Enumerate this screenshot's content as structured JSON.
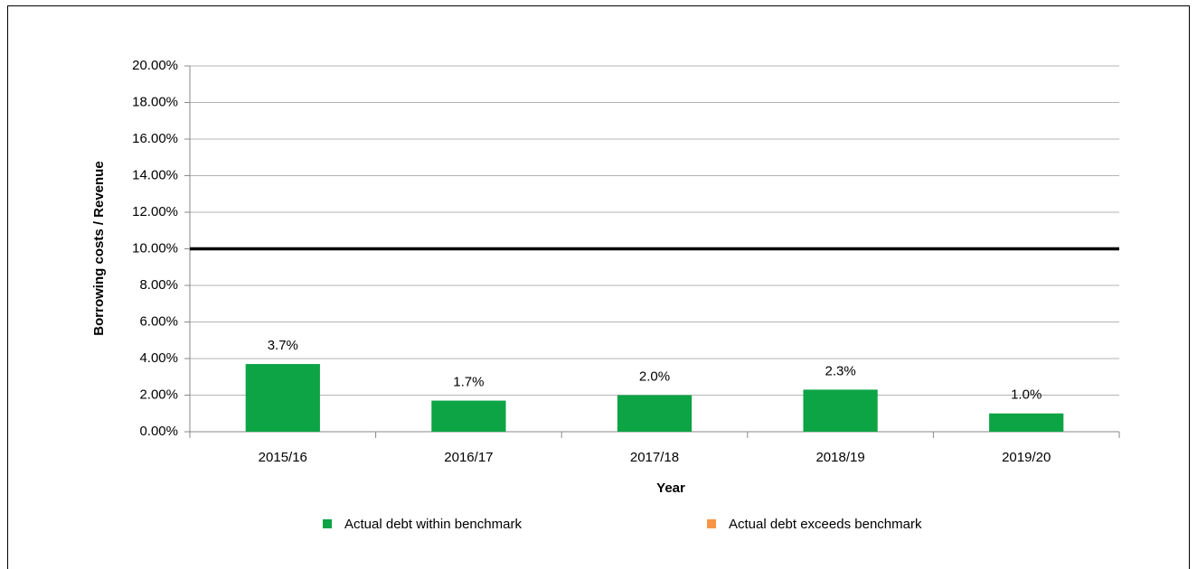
{
  "chart_data": {
    "type": "bar",
    "x_label": "Year",
    "y_label": "Borrowing costs / Revenue",
    "categories": [
      "2015/16",
      "2016/17",
      "2017/18",
      "2018/19",
      "2019/20"
    ],
    "series": [
      {
        "name": "Actual debt within benchmark",
        "color": "#0ca444",
        "values": [
          3.7,
          1.7,
          2.0,
          2.3,
          1.0
        ],
        "value_labels": [
          "3.7%",
          "1.7%",
          "2.0%",
          "2.3%",
          "1.0%"
        ]
      },
      {
        "name": "Actual debt exceeds benchmark",
        "color": "#f79646",
        "values": [
          null,
          null,
          null,
          null,
          null
        ]
      }
    ],
    "benchmark": 10,
    "ylim": [
      0,
      20
    ],
    "yticks": [
      {
        "value": 0,
        "label": "0.00%"
      },
      {
        "value": 2,
        "label": "2.00%"
      },
      {
        "value": 4,
        "label": "4.00%"
      },
      {
        "value": 6,
        "label": "6.00%"
      },
      {
        "value": 8,
        "label": "8.00%"
      },
      {
        "value": 10,
        "label": "10.00%"
      },
      {
        "value": 12,
        "label": "12.00%"
      },
      {
        "value": 14,
        "label": "14.00%"
      },
      {
        "value": 16,
        "label": "16.00%"
      },
      {
        "value": 18,
        "label": "18.00%"
      },
      {
        "value": 20,
        "label": "20.00%"
      }
    ],
    "grid": true,
    "legend": "bottom"
  }
}
